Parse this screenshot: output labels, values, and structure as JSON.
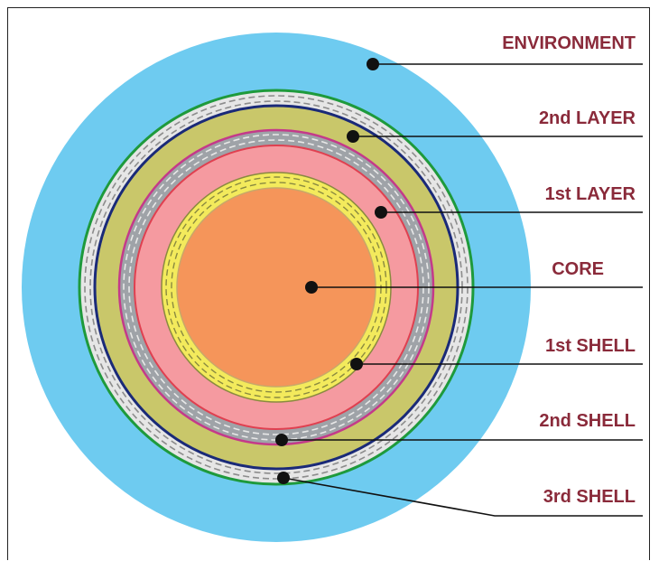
{
  "labels": {
    "environment": "ENVIRONMENT",
    "layer2": "2nd LAYER",
    "layer1": "1st LAYER",
    "core": "CORE",
    "shell1": "1st SHELL",
    "shell2": "2nd SHELL",
    "shell3": "3rd SHELL"
  },
  "colors": {
    "environment": "#6ecbf0",
    "shell3_band": "#e6e6e6",
    "layer2": "#c9c76a",
    "shell2_band": "#9fa3a8",
    "layer1": "#f59aa0",
    "shell1_band": "#f3ea5c",
    "core": "#f5955a",
    "outline_green": "#1e9a3c",
    "outline_navy": "#1a2a78",
    "outline_magenta": "#c43a8a",
    "label_text": "#8a2a3a"
  }
}
